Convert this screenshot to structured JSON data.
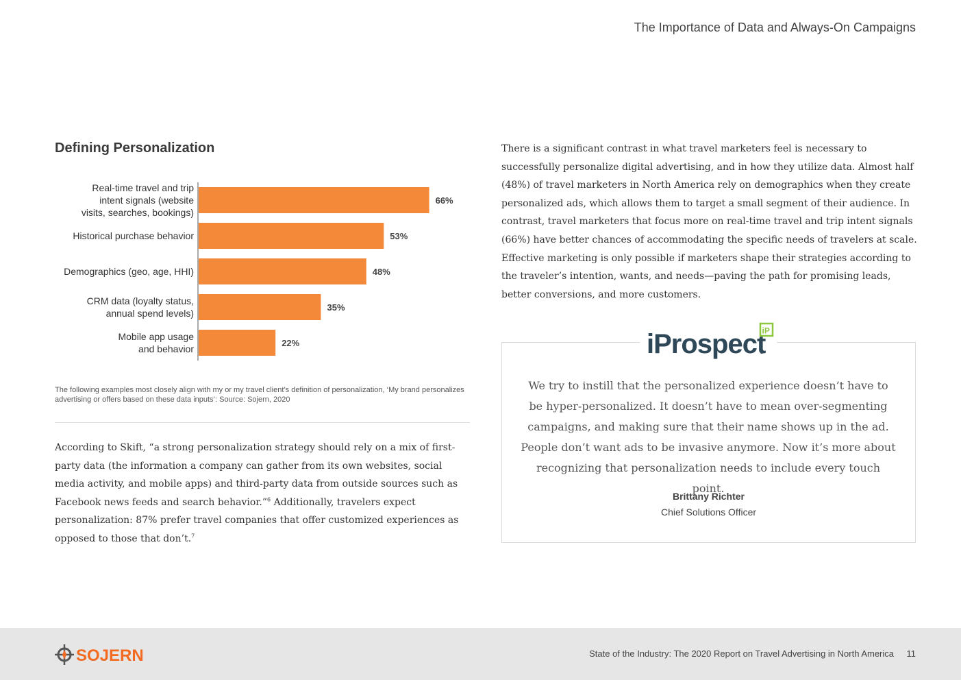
{
  "header": {
    "title": "The Importance of Data and Always-On Campaigns"
  },
  "chart_data": {
    "type": "bar",
    "orientation": "horizontal",
    "title": "Defining Personalization",
    "categories": [
      [
        "Real-time travel and trip",
        "intent signals (website",
        "visits, searches, bookings)"
      ],
      [
        "Historical purchase behavior"
      ],
      [
        "Demographics (geo, age, HHI)"
      ],
      [
        "CRM data (loyalty status,",
        "annual spend levels)"
      ],
      [
        "Mobile app usage",
        "and behavior"
      ]
    ],
    "values": [
      66,
      53,
      48,
      35,
      22
    ],
    "value_labels": [
      "66%",
      "53%",
      "48%",
      "35%",
      "22%"
    ],
    "xlim": [
      0,
      100
    ],
    "bar_color": "#f5893a",
    "grid": false,
    "xlabel": "",
    "ylabel": ""
  },
  "chart_note": "The following examples most closely align with my or my travel client’s definition of personalization, ‘My brand personalizes advertising or offers based on these data inputs’: Source: Sojern, 2020",
  "left_body": {
    "part1": "According to Skift, “a strong personalization strategy should rely on a mix of first-party data (the information a company can gather from its own websites, social media activity, and mobile apps) and third-party data from outside sources such as Facebook news feeds and search behavior.”",
    "ref1": "6",
    "part2": " Additionally, travelers expect personalization: 87% prefer travel companies that offer customized experiences as opposed to those that don’t.",
    "ref2": "7"
  },
  "right_body": "There is a significant contrast in what travel marketers feel is necessary to successfully personalize digital advertising, and in how they utilize data. Almost half (48%) of travel marketers in North America rely on demographics when they create personalized ads, which allows them to target a small segment of their audience. In contrast, travel marketers that focus more on real-time travel and trip intent signals (66%) have better chances of accommodating the specific needs of travelers at scale. Effective marketing is only possible if marketers shape their strategies according to the traveler’s intention, wants, and needs—paving the path for promising leads, better conversions, and more customers.",
  "quote": {
    "logo_text": "iProspect",
    "logo_mark": "iP",
    "text": "We try to instill that the personalized experience doesn’t have to be hyper-personalized. It doesn’t have to mean over-segmenting campaigns, and making sure that their name shows up in the ad. People don’t want ads to be invasive anymore. Now it’s more about recognizing that personalization needs to include every touch point.",
    "name": "Brittany Richter",
    "role": "Chief Solutions Officer"
  },
  "footer": {
    "logo_text": "SOJERN",
    "report_title": "State of the Industry: The 2020 Report on Travel Advertising in North America",
    "page_number": "11"
  },
  "colors": {
    "accent_orange": "#f5893a",
    "iprospect_green": "#8dc63f",
    "iprospect_navy": "#2f4858",
    "sojern_orange": "#f26b21"
  }
}
